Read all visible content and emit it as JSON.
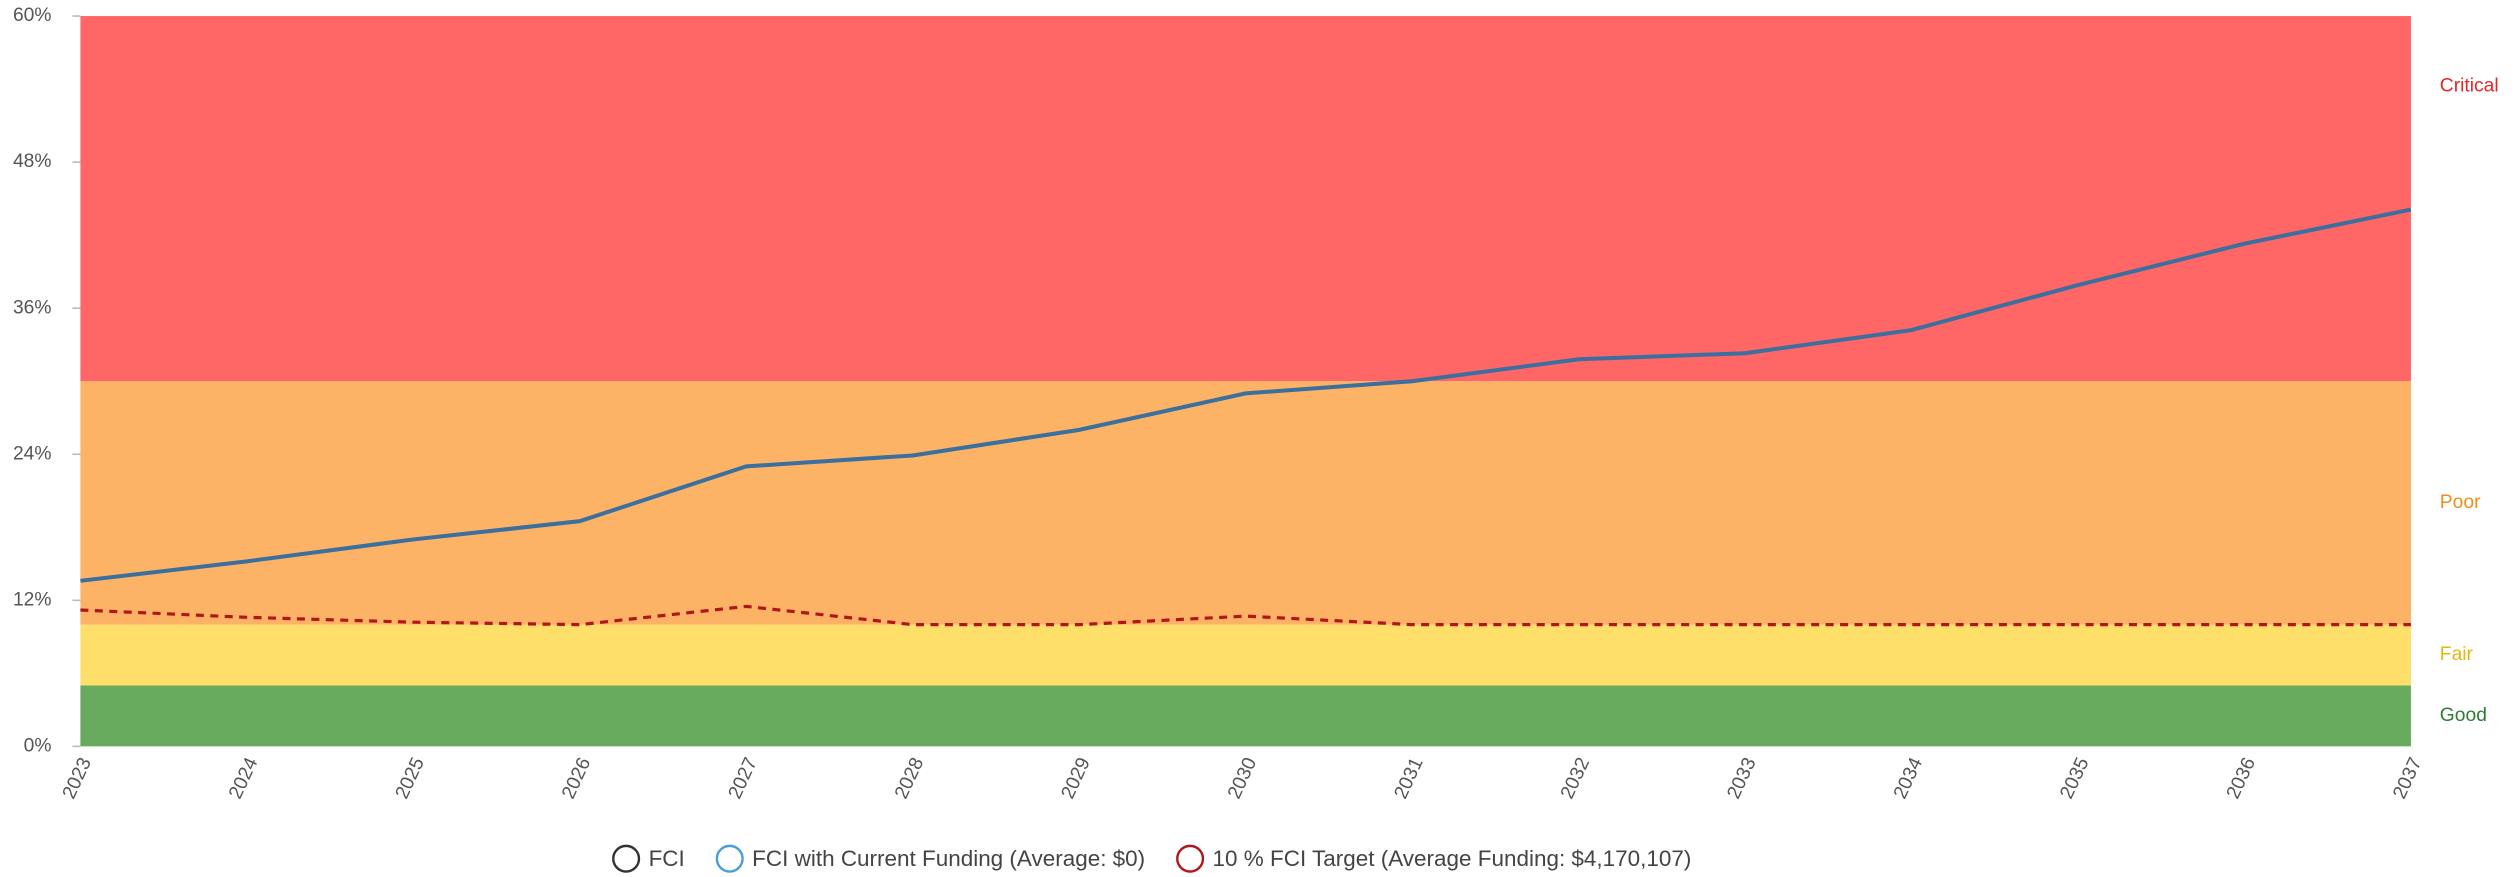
{
  "chart_data": {
    "type": "line",
    "categories": [
      "2023",
      "2024",
      "2025",
      "2026",
      "2027",
      "2028",
      "2029",
      "2030",
      "2031",
      "2032",
      "2033",
      "2034",
      "2035",
      "2036",
      "2037"
    ],
    "ylim": [
      0,
      60
    ],
    "yticks": [
      {
        "value": 0,
        "label": "0%"
      },
      {
        "value": 12,
        "label": "12%"
      },
      {
        "value": 24,
        "label": "24%"
      },
      {
        "value": 36,
        "label": "36%"
      },
      {
        "value": 48,
        "label": "48%"
      },
      {
        "value": 60,
        "label": "60%"
      }
    ],
    "bands": [
      {
        "name": "Good",
        "from": 0,
        "to": 5,
        "color": "#68ab5f",
        "label_color": "#2e7d32"
      },
      {
        "name": "Fair",
        "from": 5,
        "to": 10,
        "color": "#fedf6a",
        "label_color": "#e3b812"
      },
      {
        "name": "Poor",
        "from": 10,
        "to": 30,
        "color": "#fdb366",
        "label_color": "#ef8e1c"
      },
      {
        "name": "Critical",
        "from": 30,
        "to": 60,
        "color": "#ff6666",
        "label_color": "#e5262a"
      }
    ],
    "series": [
      {
        "name": "FCI",
        "color": "#333333",
        "dashed": false,
        "values": [
          null,
          null,
          null,
          null,
          null,
          null,
          null,
          null,
          null,
          null,
          null,
          null,
          null,
          null,
          null
        ]
      },
      {
        "name": "FCI with Current Funding (Average: $0)",
        "color": "#3a6f9e",
        "legend_color": "#4a9fd8",
        "dashed": false,
        "values": [
          13.6,
          15.2,
          17.0,
          18.5,
          23.0,
          23.9,
          26.0,
          29.0,
          30.0,
          31.8,
          32.3,
          34.2,
          37.9,
          41.3,
          44.1
        ]
      },
      {
        "name": "10 % FCI Target (Average Funding: $4,170,107)",
        "color": "#b0171c",
        "legend_color": "#b0171c",
        "dashed": true,
        "values": [
          11.2,
          10.6,
          10.2,
          10.0,
          11.5,
          10.0,
          10.0,
          10.7,
          10.0,
          10.0,
          10.0,
          10.0,
          10.0,
          10.0,
          10.0
        ]
      }
    ]
  }
}
